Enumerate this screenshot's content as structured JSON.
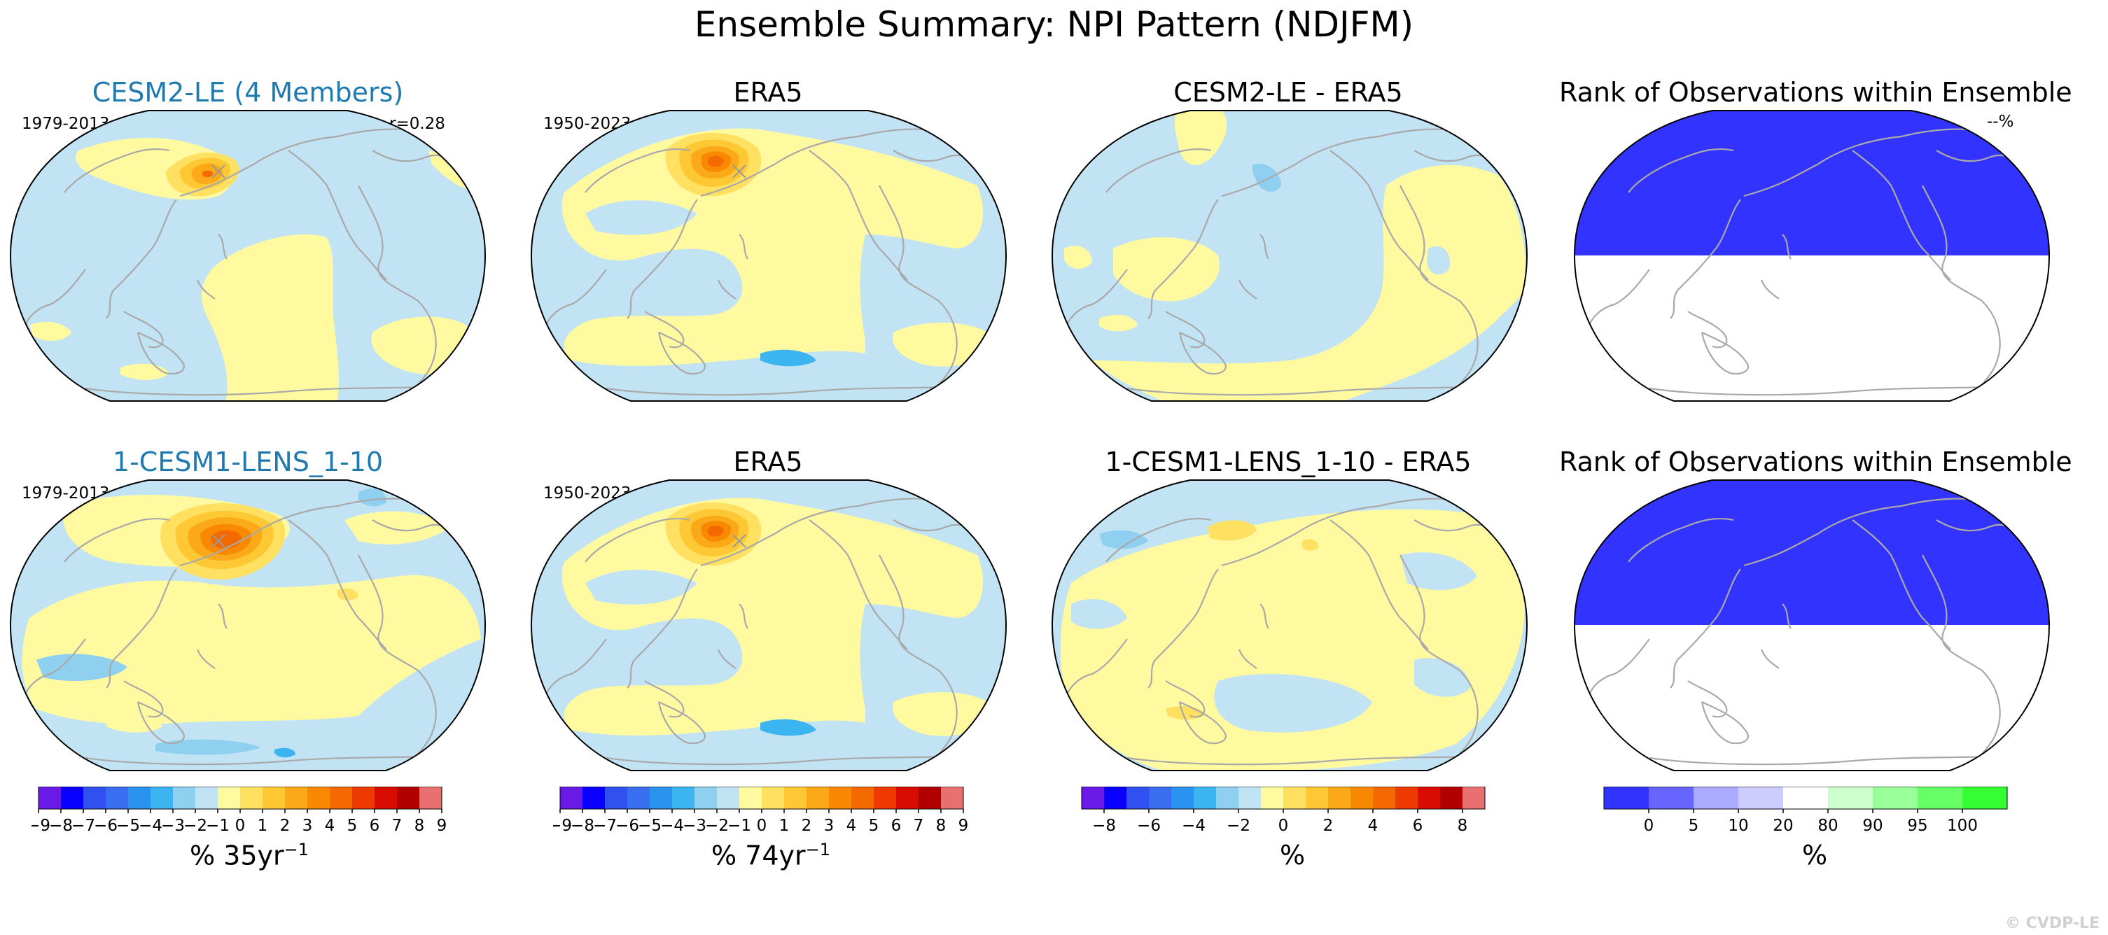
{
  "suptitle": "Ensemble Summary: NPI Pattern (NDJFM)",
  "watermark": "© CVDP-LE",
  "colors": {
    "diverging": [
      "#6a1ae6",
      "#0a00ff",
      "#3050f0",
      "#3a6ef0",
      "#2a93f0",
      "#3cb4f0",
      "#8fd0f0",
      "#c2e3f4",
      "#fffaa0",
      "#ffe060",
      "#fdc834",
      "#fba918",
      "#f98900",
      "#f56a00",
      "#ee3a00",
      "#d80c00",
      "#b00000",
      "#e87070"
    ],
    "rank": [
      "#3333ff",
      "#6666ff",
      "#aaaaff",
      "#ccccff",
      "#ffffff",
      "#ccffcc",
      "#99ff99",
      "#66ff66",
      "#33ff33"
    ],
    "coast": "#a9a9a9"
  },
  "chart_data": [
    {
      "type": "map",
      "panel": "row1-col1",
      "title": "CESM2-LE (4 Members)",
      "left_note": "1979-2013",
      "right_note": "r=0.28"
    },
    {
      "type": "map",
      "panel": "row1-col2",
      "title": "ERA5",
      "left_note": "1950-2023"
    },
    {
      "type": "map",
      "panel": "row1-col3",
      "title": "CESM2-LE - ERA5"
    },
    {
      "type": "map",
      "panel": "row1-col4",
      "title": "Rank of Observations within Ensemble",
      "right_note": "--%"
    },
    {
      "type": "map",
      "panel": "row2-col1",
      "title": "1-CESM1-LENS_1-10",
      "left_note": "1979-2013"
    },
    {
      "type": "map",
      "panel": "row2-col2",
      "title": "ERA5",
      "left_note": "1950-2023"
    },
    {
      "type": "map",
      "panel": "row2-col3",
      "title": "1-CESM1-LENS_1-10 - ERA5"
    },
    {
      "type": "map",
      "panel": "row2-col4",
      "title": "Rank of Observations within Ensemble"
    },
    {
      "type": "colorbar",
      "for": "col1",
      "ticks": [
        "−9",
        "−8",
        "−7",
        "−6",
        "−5",
        "−4",
        "−3",
        "−2",
        "−1",
        "0",
        "1",
        "2",
        "3",
        "4",
        "5",
        "6",
        "7",
        "8",
        "9"
      ],
      "label_main": "% 35yr",
      "label_sup": "−1"
    },
    {
      "type": "colorbar",
      "for": "col2",
      "ticks": [
        "−9",
        "−8",
        "−7",
        "−6",
        "−5",
        "−4",
        "−3",
        "−2",
        "−1",
        "0",
        "1",
        "2",
        "3",
        "4",
        "5",
        "6",
        "7",
        "8",
        "9"
      ],
      "label_main": "% 74yr",
      "label_sup": "−1"
    },
    {
      "type": "colorbar",
      "for": "col3",
      "ticks": [
        "−8",
        "−6",
        "−4",
        "−2",
        "0",
        "2",
        "4",
        "6",
        "8"
      ],
      "label_main": "%"
    },
    {
      "type": "colorbar",
      "for": "col4",
      "ticks": [
        "0",
        "5",
        "10",
        "20",
        "80",
        "90",
        "95",
        "100"
      ],
      "label_main": "%"
    }
  ]
}
